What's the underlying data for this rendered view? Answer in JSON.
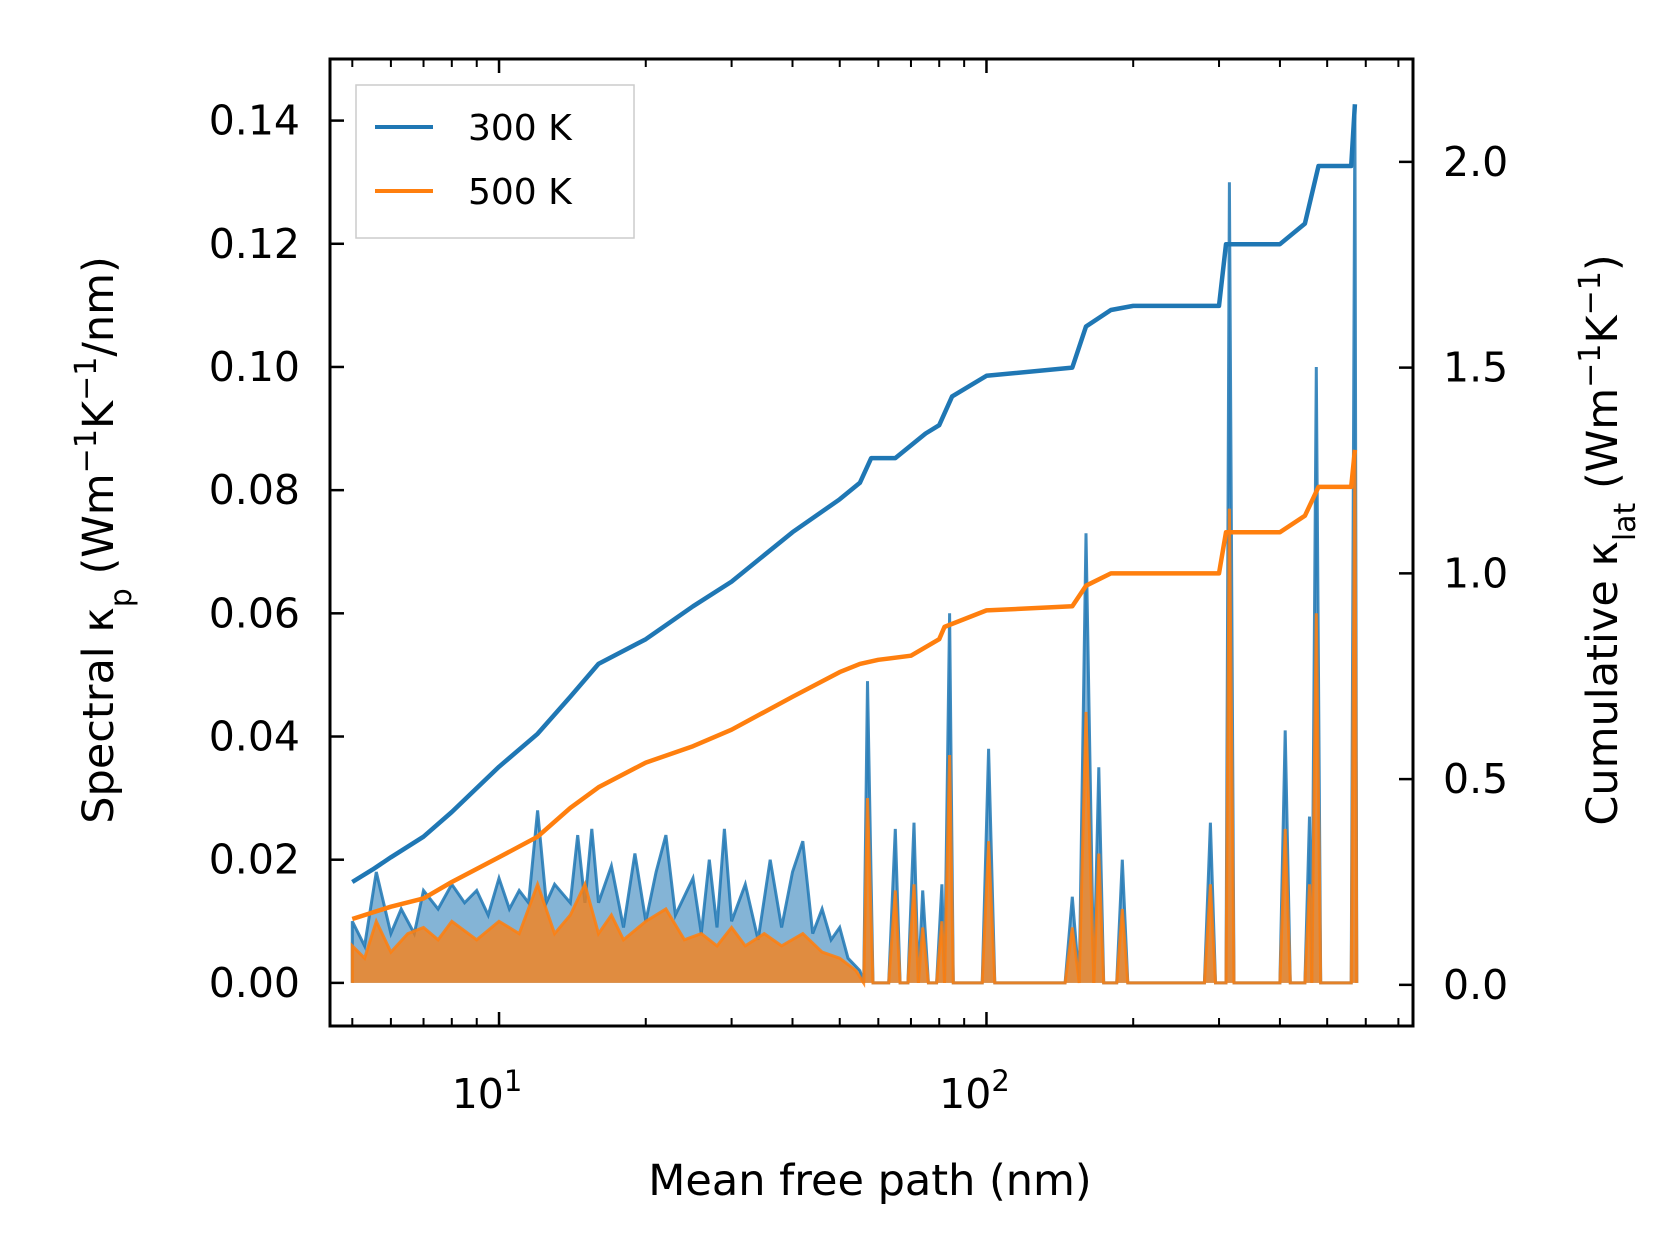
{
  "chart_data": {
    "type": "line",
    "title": "",
    "xlabel": "Mean free path (nm)",
    "ylabel_left": {
      "pre": "Spectral κ",
      "sub": "p",
      "post": " (Wm",
      "sup1": "−1",
      "mid": "K",
      "sup2": "−1",
      "tail": "/nm)"
    },
    "ylabel_right": {
      "pre": "Cumulative κ",
      "sub": "lat",
      "post": " (Wm",
      "sup1": "−1",
      "mid": "K",
      "sup2": "−1",
      "tail": ")"
    },
    "x_scale": "log",
    "xlim": [
      4.5,
      750
    ],
    "x_ticks": [
      {
        "value": 10,
        "base": "10",
        "exp": "1"
      },
      {
        "value": 100,
        "base": "10",
        "exp": "2"
      }
    ],
    "ylim_left": [
      -0.007,
      0.15
    ],
    "ylim_right": [
      -0.1,
      2.25
    ],
    "y_ticks_left": [
      "0.00",
      "0.02",
      "0.04",
      "0.06",
      "0.08",
      "0.10",
      "0.12",
      "0.14"
    ],
    "y_ticks_right": [
      "0.0",
      "0.5",
      "1.0",
      "1.5",
      "2.0"
    ],
    "legend": {
      "position": "top-left",
      "entries": [
        "300 K",
        "500 K"
      ]
    },
    "colors": {
      "300 K": "#1f77b4",
      "500 K": "#ff7f0e"
    },
    "series": [
      {
        "name": "300 K",
        "cumulative": [
          [
            5,
            0.25
          ],
          [
            5.5,
            0.28
          ],
          [
            6,
            0.31
          ],
          [
            7,
            0.36
          ],
          [
            8,
            0.42
          ],
          [
            10,
            0.53
          ],
          [
            12,
            0.61
          ],
          [
            14,
            0.7
          ],
          [
            16,
            0.78
          ],
          [
            20,
            0.84
          ],
          [
            25,
            0.92
          ],
          [
            30,
            0.98
          ],
          [
            40,
            1.1
          ],
          [
            50,
            1.18
          ],
          [
            55,
            1.22
          ],
          [
            58,
            1.28
          ],
          [
            65,
            1.28
          ],
          [
            75,
            1.34
          ],
          [
            80,
            1.36
          ],
          [
            85,
            1.43
          ],
          [
            100,
            1.48
          ],
          [
            150,
            1.5
          ],
          [
            160,
            1.6
          ],
          [
            180,
            1.64
          ],
          [
            200,
            1.65
          ],
          [
            300,
            1.65
          ],
          [
            310,
            1.8
          ],
          [
            400,
            1.8
          ],
          [
            450,
            1.85
          ],
          [
            480,
            1.99
          ],
          [
            560,
            1.99
          ],
          [
            570,
            2.14
          ]
        ],
        "spectral": [
          [
            5,
            0
          ],
          [
            5,
            0.01
          ],
          [
            5.3,
            0.006
          ],
          [
            5.6,
            0.018
          ],
          [
            6,
            0.008
          ],
          [
            6.3,
            0.012
          ],
          [
            6.7,
            0.008
          ],
          [
            7,
            0.015
          ],
          [
            7.5,
            0.012
          ],
          [
            8,
            0.016
          ],
          [
            8.5,
            0.013
          ],
          [
            9,
            0.015
          ],
          [
            9.5,
            0.011
          ],
          [
            10,
            0.017
          ],
          [
            10.5,
            0.012
          ],
          [
            11,
            0.015
          ],
          [
            11.5,
            0.013
          ],
          [
            12,
            0.028
          ],
          [
            12.5,
            0.013
          ],
          [
            13,
            0.016
          ],
          [
            14,
            0.013
          ],
          [
            14.5,
            0.024
          ],
          [
            15,
            0.013
          ],
          [
            15.5,
            0.025
          ],
          [
            16,
            0.013
          ],
          [
            17,
            0.019
          ],
          [
            18,
            0.009
          ],
          [
            19,
            0.021
          ],
          [
            20,
            0.01
          ],
          [
            21,
            0.018
          ],
          [
            22,
            0.024
          ],
          [
            23,
            0.011
          ],
          [
            25,
            0.017
          ],
          [
            26,
            0.008
          ],
          [
            27,
            0.02
          ],
          [
            28,
            0.009
          ],
          [
            29,
            0.025
          ],
          [
            30,
            0.01
          ],
          [
            32,
            0.016
          ],
          [
            34,
            0.007
          ],
          [
            36,
            0.02
          ],
          [
            38,
            0.009
          ],
          [
            40,
            0.018
          ],
          [
            42,
            0.023
          ],
          [
            44,
            0.008
          ],
          [
            46,
            0.012
          ],
          [
            48,
            0.007
          ],
          [
            50,
            0.009
          ],
          [
            52,
            0.004
          ],
          [
            55,
            0.002
          ],
          [
            56,
            0
          ],
          [
            57,
            0.049
          ],
          [
            58.5,
            0
          ],
          [
            63,
            0
          ],
          [
            65,
            0.025
          ],
          [
            66.5,
            0
          ],
          [
            69,
            0
          ],
          [
            71,
            0.026
          ],
          [
            72.5,
            0
          ],
          [
            74,
            0.015
          ],
          [
            76,
            0
          ],
          [
            79,
            0
          ],
          [
            81,
            0.016
          ],
          [
            82,
            0
          ],
          [
            84,
            0.06
          ],
          [
            85.5,
            0
          ],
          [
            90,
            0
          ],
          [
            98,
            0
          ],
          [
            101,
            0.038
          ],
          [
            104,
            0
          ],
          [
            110,
            0
          ],
          [
            145,
            0
          ],
          [
            150,
            0.014
          ],
          [
            155,
            0
          ],
          [
            160,
            0.073
          ],
          [
            166,
            0
          ],
          [
            170,
            0.035
          ],
          [
            174,
            0
          ],
          [
            185,
            0
          ],
          [
            190,
            0.02
          ],
          [
            195,
            0
          ],
          [
            280,
            0
          ],
          [
            288,
            0.026
          ],
          [
            295,
            0
          ],
          [
            310,
            0
          ],
          [
            315,
            0.13
          ],
          [
            322,
            0
          ],
          [
            400,
            0
          ],
          [
            410,
            0.041
          ],
          [
            420,
            0
          ],
          [
            450,
            0
          ],
          [
            460,
            0.027
          ],
          [
            465,
            0
          ],
          [
            475,
            0.1
          ],
          [
            485,
            0
          ],
          [
            560,
            0
          ],
          [
            570,
            0.142
          ],
          [
            575,
            0
          ]
        ]
      },
      {
        "name": "500 K",
        "cumulative": [
          [
            5,
            0.16
          ],
          [
            6,
            0.19
          ],
          [
            7,
            0.21
          ],
          [
            8,
            0.25
          ],
          [
            10,
            0.31
          ],
          [
            12,
            0.36
          ],
          [
            14,
            0.43
          ],
          [
            16,
            0.48
          ],
          [
            20,
            0.54
          ],
          [
            25,
            0.58
          ],
          [
            30,
            0.62
          ],
          [
            40,
            0.7
          ],
          [
            50,
            0.76
          ],
          [
            55,
            0.78
          ],
          [
            60,
            0.79
          ],
          [
            70,
            0.8
          ],
          [
            80,
            0.84
          ],
          [
            82,
            0.87
          ],
          [
            100,
            0.91
          ],
          [
            150,
            0.92
          ],
          [
            160,
            0.97
          ],
          [
            180,
            1.0
          ],
          [
            300,
            1.0
          ],
          [
            310,
            1.1
          ],
          [
            400,
            1.1
          ],
          [
            450,
            1.14
          ],
          [
            480,
            1.21
          ],
          [
            560,
            1.21
          ],
          [
            570,
            1.3
          ]
        ],
        "spectral": [
          [
            5,
            0
          ],
          [
            5,
            0.006
          ],
          [
            5.3,
            0.004
          ],
          [
            5.6,
            0.01
          ],
          [
            6,
            0.005
          ],
          [
            6.5,
            0.008
          ],
          [
            7,
            0.009
          ],
          [
            7.5,
            0.007
          ],
          [
            8,
            0.01
          ],
          [
            9,
            0.007
          ],
          [
            10,
            0.01
          ],
          [
            11,
            0.008
          ],
          [
            12,
            0.016
          ],
          [
            13,
            0.008
          ],
          [
            14,
            0.011
          ],
          [
            15,
            0.016
          ],
          [
            16,
            0.008
          ],
          [
            17,
            0.011
          ],
          [
            18,
            0.007
          ],
          [
            20,
            0.01
          ],
          [
            22,
            0.012
          ],
          [
            24,
            0.007
          ],
          [
            26,
            0.008
          ],
          [
            28,
            0.006
          ],
          [
            30,
            0.009
          ],
          [
            32,
            0.006
          ],
          [
            35,
            0.008
          ],
          [
            38,
            0.006
          ],
          [
            42,
            0.008
          ],
          [
            46,
            0.005
          ],
          [
            50,
            0.004
          ],
          [
            54,
            0.002
          ],
          [
            56,
            0
          ],
          [
            57,
            0.03
          ],
          [
            58.5,
            0
          ],
          [
            63,
            0
          ],
          [
            65,
            0.015
          ],
          [
            66.5,
            0
          ],
          [
            69,
            0
          ],
          [
            71,
            0.016
          ],
          [
            72.5,
            0
          ],
          [
            74,
            0.009
          ],
          [
            76,
            0
          ],
          [
            79,
            0
          ],
          [
            81,
            0.01
          ],
          [
            82,
            0
          ],
          [
            84,
            0.037
          ],
          [
            85.5,
            0
          ],
          [
            90,
            0
          ],
          [
            98,
            0
          ],
          [
            101,
            0.023
          ],
          [
            104,
            0
          ],
          [
            110,
            0
          ],
          [
            145,
            0
          ],
          [
            150,
            0.009
          ],
          [
            155,
            0
          ],
          [
            160,
            0.044
          ],
          [
            166,
            0
          ],
          [
            170,
            0.021
          ],
          [
            174,
            0
          ],
          [
            185,
            0
          ],
          [
            190,
            0.012
          ],
          [
            195,
            0
          ],
          [
            280,
            0
          ],
          [
            288,
            0.016
          ],
          [
            295,
            0
          ],
          [
            310,
            0
          ],
          [
            315,
            0.077
          ],
          [
            322,
            0
          ],
          [
            400,
            0
          ],
          [
            410,
            0.025
          ],
          [
            420,
            0
          ],
          [
            450,
            0
          ],
          [
            460,
            0.016
          ],
          [
            465,
            0
          ],
          [
            475,
            0.06
          ],
          [
            485,
            0
          ],
          [
            560,
            0
          ],
          [
            570,
            0.086
          ],
          [
            575,
            0
          ]
        ]
      }
    ]
  }
}
